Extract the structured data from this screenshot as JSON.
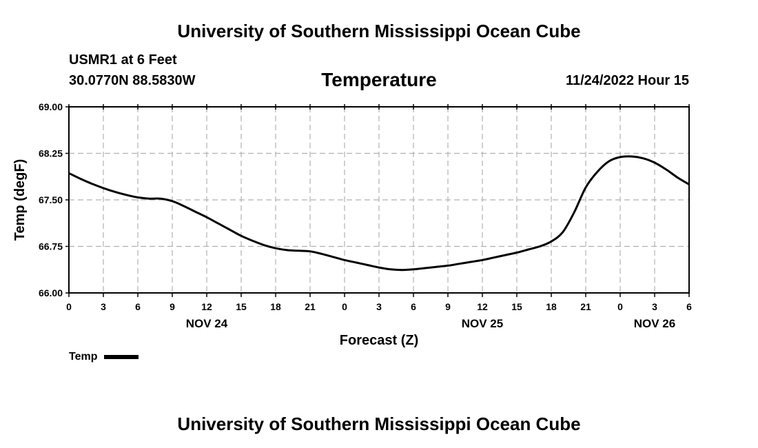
{
  "header": {
    "title": "University of Southern Mississippi Ocean Cube",
    "station": "USMR1 at 6 Feet",
    "coords": "30.0770N  88.5830W",
    "subtitle": "Temperature",
    "datetime": "11/24/2022 Hour 15"
  },
  "footer": {
    "title": "University of Southern Mississippi Ocean Cube"
  },
  "legend": {
    "label": "Temp"
  },
  "chart_data": {
    "type": "line",
    "title": "Temperature",
    "xlabel": "Forecast (Z)",
    "ylabel": "Temp (degF)",
    "xlim": [
      0,
      54
    ],
    "ylim": [
      66.0,
      69.0
    ],
    "ytick_values": [
      66.0,
      66.75,
      67.5,
      68.25,
      69.0
    ],
    "ytick_labels": [
      "66.00",
      "66.75",
      "67.50",
      "68.25",
      "69.00"
    ],
    "xtick_values": [
      0,
      3,
      6,
      9,
      12,
      15,
      18,
      21,
      24,
      27,
      30,
      33,
      36,
      39,
      42,
      45,
      48,
      51,
      54
    ],
    "xtick_labels": [
      "0",
      "3",
      "6",
      "9",
      "12",
      "15",
      "18",
      "21",
      "0",
      "3",
      "6",
      "9",
      "12",
      "15",
      "18",
      "21",
      "0",
      "3",
      "6"
    ],
    "date_labels": [
      {
        "x": 12,
        "label": "NOV 24"
      },
      {
        "x": 36,
        "label": "NOV 25"
      },
      {
        "x": 51,
        "label": "NOV 26"
      }
    ],
    "grid": true,
    "series": [
      {
        "name": "Temp",
        "x": [
          0,
          1,
          2,
          3,
          4,
          5,
          6,
          7,
          8,
          9,
          10,
          11,
          12,
          13,
          14,
          15,
          16,
          17,
          18,
          19,
          20,
          21,
          22,
          23,
          24,
          25,
          26,
          27,
          28,
          29,
          30,
          31,
          32,
          33,
          34,
          35,
          36,
          37,
          38,
          39,
          40,
          41,
          42,
          43,
          44,
          45,
          46,
          47,
          48,
          49,
          50,
          51,
          52,
          53,
          54
        ],
        "values": [
          67.93,
          67.84,
          67.76,
          67.69,
          67.63,
          67.58,
          67.54,
          67.52,
          67.52,
          67.48,
          67.4,
          67.31,
          67.22,
          67.12,
          67.02,
          66.92,
          66.84,
          66.77,
          66.72,
          66.69,
          66.68,
          66.67,
          66.63,
          66.58,
          66.53,
          66.49,
          66.45,
          66.41,
          66.38,
          66.37,
          66.38,
          66.4,
          66.42,
          66.44,
          66.47,
          66.5,
          66.53,
          66.57,
          66.61,
          66.65,
          66.7,
          66.75,
          66.83,
          66.98,
          67.3,
          67.7,
          67.95,
          68.12,
          68.19,
          68.2,
          68.17,
          68.1,
          67.99,
          67.86,
          67.75
        ]
      }
    ]
  }
}
